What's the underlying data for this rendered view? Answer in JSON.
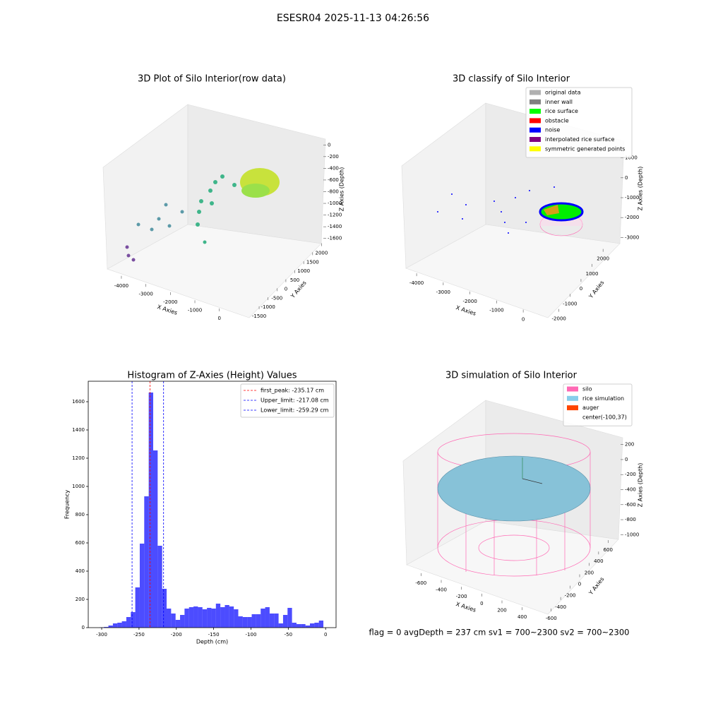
{
  "title": "ESESR04 2025-11-13 04:26:56",
  "footer": "flag = 0     avgDepth = 237 cm  sv1 = 700~2300  sv2 = 700~2300",
  "chart_data": [
    {
      "type": "scatter3d",
      "title": "3D Plot of Silo Interior(row data)",
      "xlabel": "X Axies",
      "ylabel": "Y Axies",
      "zlabel": "Z Axies (Depth)",
      "xlim": [
        -4500,
        700
      ],
      "ylim": [
        -1700,
        2300
      ],
      "zlim": [
        -1700,
        100
      ],
      "xticks": [
        -4000,
        -3000,
        -2000,
        -1000,
        0
      ],
      "yticks": [
        -1500,
        -1000,
        -500,
        0,
        500,
        1000,
        1500,
        2000
      ],
      "zticks": [
        0,
        -200,
        -400,
        -600,
        -800,
        -1000,
        -1200,
        -1400,
        -1600
      ]
    },
    {
      "type": "scatter3d",
      "title": "3D classify of Silo Interior",
      "xlabel": "X Axies",
      "ylabel": "Y Axies",
      "zlabel": "Z Axies (Depth)",
      "xlim": [
        -4400,
        500
      ],
      "ylim": [
        -2300,
        2500
      ],
      "zlim": [
        -3200,
        1200
      ],
      "xticks": [
        -4000,
        -3000,
        -2000,
        -1000,
        0
      ],
      "yticks": [
        -2000,
        -1000,
        0,
        1000,
        2000
      ],
      "zticks": [
        1000,
        0,
        -1000,
        -2000,
        -3000
      ],
      "legend": [
        {
          "name": "original data",
          "color": "#b0b0b0"
        },
        {
          "name": "inner wall",
          "color": "#808080"
        },
        {
          "name": "rice surface",
          "color": "#00ff00"
        },
        {
          "name": "obstacle",
          "color": "#ff0000"
        },
        {
          "name": "noise",
          "color": "#0000ff"
        },
        {
          "name": "interpolated rice surface",
          "color": "#800080"
        },
        {
          "name": "symmetric generated points",
          "color": "#ffff00"
        }
      ]
    },
    {
      "type": "histogram",
      "title": "Histogram of Z-Axies (Height) Values",
      "xlabel": "Depth (cm)",
      "ylabel": "Frequency",
      "color": "#0000ff",
      "xlim": [
        -318,
        14
      ],
      "ylim": [
        0,
        1745
      ],
      "xticks": [
        -300,
        -250,
        -200,
        -150,
        -100,
        -50,
        0
      ],
      "yticks": [
        0,
        200,
        400,
        600,
        800,
        1000,
        1200,
        1400,
        1600
      ],
      "bins": [
        -303,
        -297,
        -291,
        -285,
        -279,
        -273,
        -267,
        -261,
        -255,
        -249,
        -243,
        -237,
        -231,
        -225,
        -219,
        -213,
        -207,
        -201,
        -195,
        -189,
        -183,
        -177,
        -171,
        -165,
        -159,
        -153,
        -147,
        -141,
        -135,
        -129,
        -123,
        -117,
        -111,
        -105,
        -99,
        -93,
        -87,
        -81,
        -75,
        -69,
        -63,
        -57,
        -51,
        -45,
        -39,
        -33,
        -27,
        -21,
        -15,
        -9,
        -3
      ],
      "values": [
        2,
        5,
        15,
        30,
        35,
        45,
        75,
        110,
        285,
        595,
        930,
        1665,
        1255,
        580,
        275,
        135,
        100,
        55,
        90,
        135,
        145,
        150,
        145,
        130,
        140,
        135,
        170,
        145,
        160,
        150,
        130,
        80,
        75,
        75,
        95,
        95,
        135,
        145,
        100,
        100,
        30,
        90,
        140,
        35,
        25,
        25,
        15,
        30,
        35,
        50
      ],
      "vlines": [
        {
          "name": "first_peak: -235.17 cm",
          "value": -235.17,
          "color": "#ff0000"
        },
        {
          "name": "Upper_limit: -217.08 cm",
          "value": -217.08,
          "color": "#0000ff"
        },
        {
          "name": "Lower_limit: -259.29 cm",
          "value": -259.29,
          "color": "#0000ff"
        }
      ]
    },
    {
      "type": "scatter3d",
      "title": "3D simulation of Silo Interior",
      "xlabel": "X Axies",
      "ylabel": "Y Axies",
      "zlabel": "Z Axies (Depth)",
      "xlim": [
        -700,
        500
      ],
      "ylim": [
        -700,
        700
      ],
      "zlim": [
        -1100,
        300
      ],
      "xticks": [
        -600,
        -400,
        -200,
        0,
        200,
        400
      ],
      "yticks": [
        -600,
        -400,
        -200,
        0,
        200,
        400,
        600
      ],
      "zticks": [
        200,
        0,
        -200,
        -400,
        -600,
        -800,
        -1000
      ],
      "legend": [
        {
          "name": "silo",
          "color": "#ff69b4"
        },
        {
          "name": "rice simulation",
          "color": "#87ceeb"
        },
        {
          "name": "auger",
          "color": "#ff4500"
        },
        {
          "name": "center(-100,37)"
        }
      ]
    }
  ]
}
